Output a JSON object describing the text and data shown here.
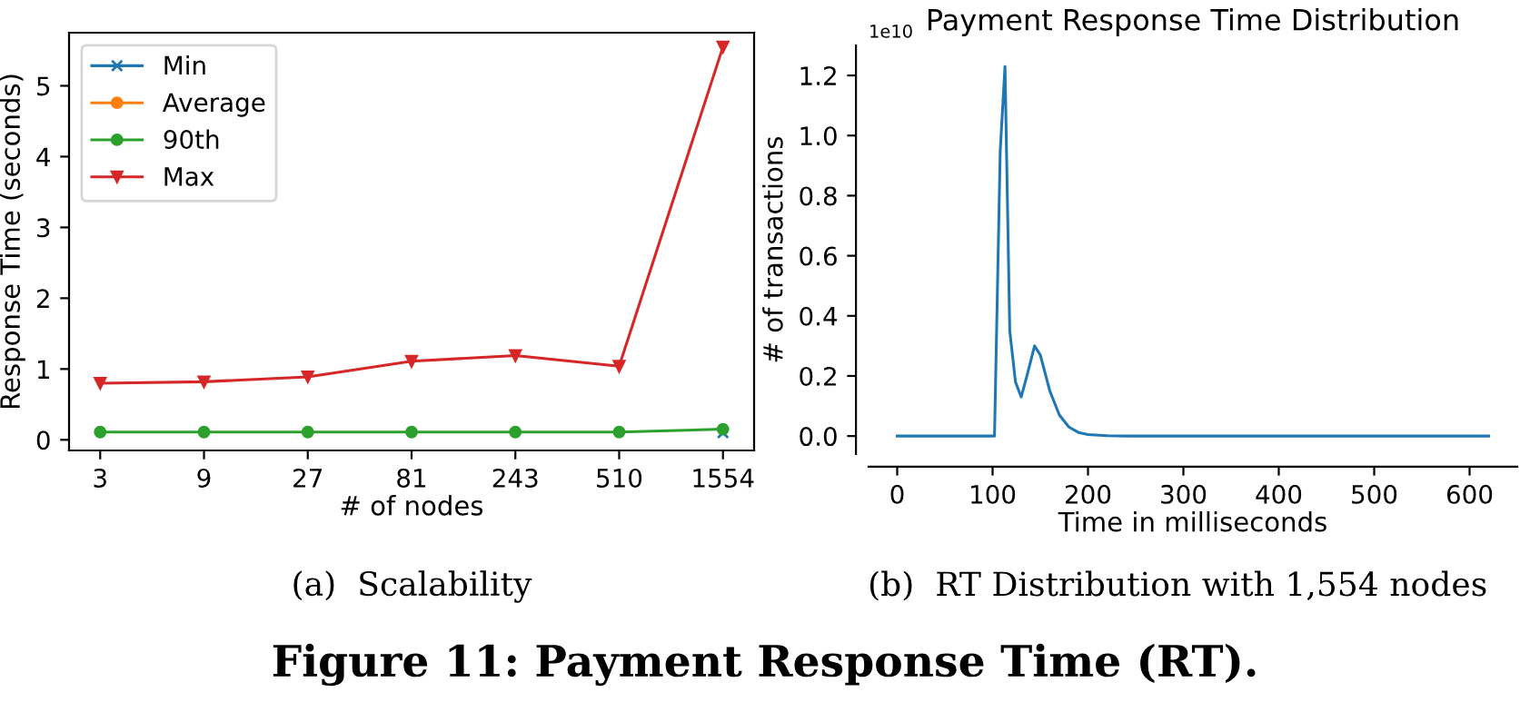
{
  "chart_data": [
    {
      "type": "line",
      "xlabel": "# of nodes",
      "ylabel": "Response Time (seconds)",
      "categories": [
        "3",
        "9",
        "27",
        "81",
        "243",
        "510",
        "1554"
      ],
      "series": [
        {
          "name": "Min",
          "color": "#1f77b4",
          "marker": "cross",
          "values": [
            null,
            null,
            null,
            null,
            null,
            null,
            0.1
          ]
        },
        {
          "name": "Average",
          "color": "#ff7f0e",
          "marker": "circle",
          "values": [
            null,
            null,
            null,
            null,
            null,
            null,
            null
          ]
        },
        {
          "name": "90th",
          "color": "#2ca02c",
          "marker": "circle",
          "values": [
            0.11,
            0.11,
            0.11,
            0.11,
            0.11,
            0.11,
            0.15
          ]
        },
        {
          "name": "Max",
          "color": "#d62728",
          "marker": "triangle",
          "values": [
            0.8,
            0.82,
            0.89,
            1.11,
            1.19,
            1.04,
            5.55
          ]
        }
      ],
      "ylim": [
        -0.15,
        5.75
      ],
      "yticks": [
        0,
        1,
        2,
        3,
        4,
        5
      ],
      "legend": "top left",
      "grid": false,
      "annotations": [
        "(a)  Scalability",
        "Figure 11: Payment Response Time (RT)."
      ]
    },
    {
      "type": "line",
      "title": "Payment Response Time Distribution",
      "xlabel": "Time in milliseconds",
      "ylabel": "# of transactions",
      "series": [
        {
          "color": "#1f77b4",
          "x": [
            0,
            100,
            102,
            108,
            113,
            118,
            124,
            130,
            136,
            144,
            150,
            160,
            170,
            180,
            190,
            200,
            220,
            240,
            620
          ],
          "values": [
            0,
            0,
            0,
            0.95,
            1.23,
            0.35,
            0.18,
            0.13,
            0.2,
            0.3,
            0.27,
            0.15,
            0.07,
            0.03,
            0.012,
            0.005,
            0.001,
            0,
            0
          ]
        }
      ],
      "xlim": [
        -30,
        650
      ],
      "xticks": [
        0,
        100,
        200,
        300,
        400,
        500,
        600
      ],
      "ylim": [
        -0.06,
        1.3
      ],
      "yticks": [
        {
          "value": 0,
          "label": "0.0"
        },
        {
          "value": 0.2,
          "label": "0.2"
        },
        {
          "value": 0.4,
          "label": "0.4"
        },
        {
          "value": 0.6,
          "label": "0.6"
        },
        {
          "value": 0.8,
          "label": "0.8"
        },
        {
          "value": 1.0,
          "label": "1.0"
        },
        {
          "value": 1.2,
          "label": "1.2"
        }
      ],
      "grid": false,
      "annotations": [
        "1e10",
        "(b)  RT Distribution with 1,554 nodes"
      ]
    }
  ]
}
